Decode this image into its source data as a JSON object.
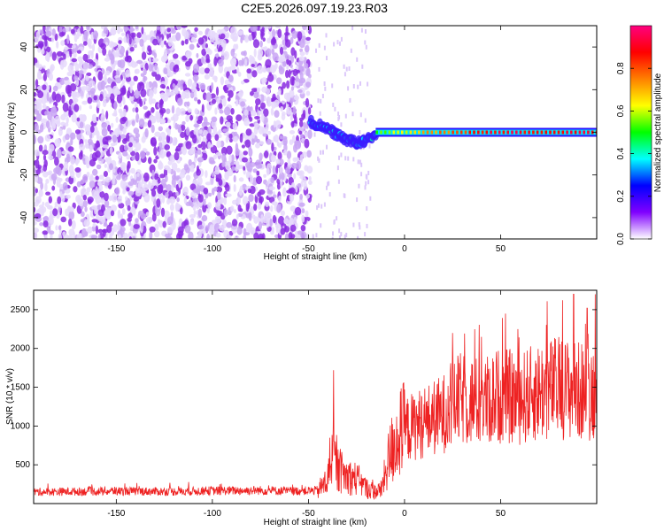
{
  "title": "C2E5.2026.097.19.23.R03",
  "chart_data": [
    {
      "type": "heatmap",
      "title": "C2E5.2026.097.19.23.R03",
      "xlabel": "Height of straight line (km)",
      "ylabel": "Frequency (Hz)",
      "xlim": [
        -193,
        100
      ],
      "ylim": [
        -50,
        50
      ],
      "x_ticks": [
        -150,
        -100,
        -50,
        0,
        50
      ],
      "y_ticks": [
        -40,
        -20,
        0,
        20,
        40
      ],
      "colorbar": {
        "label": "Normalized spectral amplitude",
        "range": [
          0.0,
          1.0
        ],
        "ticks": [
          0.0,
          0.2,
          0.4,
          0.6,
          0.8
        ],
        "tick_labels": [
          "0.0",
          "0.2",
          "0.4",
          "0.6",
          "0.8"
        ],
        "colors": [
          "#ffffff",
          "#8000ff",
          "#0000ff",
          "#00ffff",
          "#00ff00",
          "#ffff00",
          "#ff8000",
          "#ff0000",
          "#ff0080"
        ]
      },
      "regions": [
        {
          "name": "noise",
          "x_range": [
            -193,
            -49
          ],
          "freq_range": [
            -50,
            50
          ],
          "amplitude": 0.1
        },
        {
          "name": "signal-onset",
          "x_range": [
            -49,
            -15
          ],
          "frequency_hz": [
            5,
            2,
            -3,
            -5,
            -2
          ],
          "amplitude": 0.3
        },
        {
          "name": "carrier",
          "x_range": [
            -15,
            100
          ],
          "frequency_hz": 0,
          "amplitude": 0.9
        }
      ]
    },
    {
      "type": "line",
      "xlabel": "Height of straight line (km)",
      "ylabel": "SNR (10 * v/v)",
      "xlim": [
        -193,
        100
      ],
      "ylim": [
        0,
        2750
      ],
      "x_ticks": [
        -150,
        -100,
        -50,
        0,
        50
      ],
      "y_ticks": [
        500,
        1000,
        1500,
        2000,
        2500
      ],
      "series": [
        {
          "name": "SNR",
          "color": "#ee2222",
          "x": [
            -193,
            -170,
            -150,
            -120,
            -100,
            -75,
            -60,
            -50,
            -45,
            -40,
            -38,
            -35,
            -30,
            -25,
            -20,
            -15,
            -12,
            -8,
            -5,
            0,
            5,
            10,
            15,
            20,
            25,
            30,
            40,
            50,
            60,
            70,
            80,
            90,
            100
          ],
          "values": [
            150,
            155,
            160,
            155,
            165,
            170,
            160,
            165,
            170,
            300,
            650,
            450,
            350,
            320,
            200,
            150,
            180,
            600,
            800,
            950,
            1000,
            1050,
            1100,
            1150,
            1300,
            1350,
            1300,
            1400,
            1350,
            1450,
            1500,
            1450,
            1450
          ],
          "peak_values": [
            [
              -37,
              1720
            ],
            [
              25,
              2200
            ],
            [
              40,
              2150
            ],
            [
              59,
              2250
            ],
            [
              88,
              2700
            ],
            [
              95,
              2520
            ]
          ]
        }
      ]
    }
  ]
}
